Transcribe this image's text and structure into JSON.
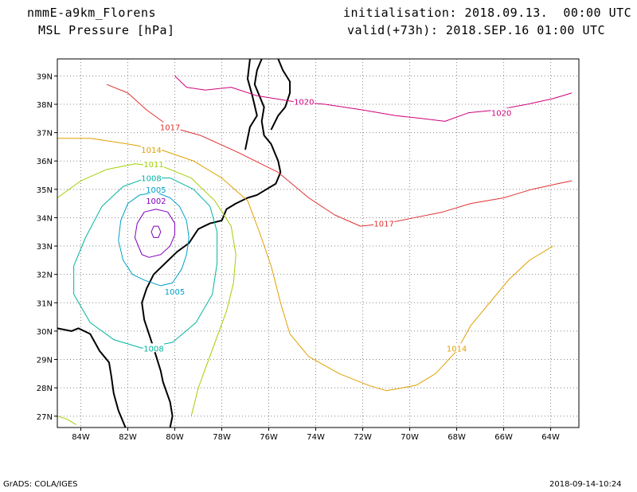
{
  "header": {
    "model": "nmmE-a9km_Florens",
    "variable": "MSL Pressure [hPa]",
    "initialisation": "initialisation: 2018.09.13.  00:00 UTC",
    "valid": "valid(+73h): 2018.SEP.16 01:00 UTC"
  },
  "footer": {
    "credit": "GrADS: COLA/IGES",
    "timestamp": "2018-09-14-10:24"
  },
  "map": {
    "lon_range": [
      -85,
      -62.8
    ],
    "lat_range": [
      26.6,
      39.6
    ],
    "grid": "dotted",
    "lon_ticks": [
      {
        "value": -84,
        "label": "84W"
      },
      {
        "value": -82,
        "label": "82W"
      },
      {
        "value": -80,
        "label": "80W"
      },
      {
        "value": -78,
        "label": "78W"
      },
      {
        "value": -76,
        "label": "76W"
      },
      {
        "value": -74,
        "label": "74W"
      },
      {
        "value": -72,
        "label": "72W"
      },
      {
        "value": -70,
        "label": "70W"
      },
      {
        "value": -68,
        "label": "68W"
      },
      {
        "value": -66,
        "label": "66W"
      },
      {
        "value": -64,
        "label": "64W"
      }
    ],
    "lat_ticks": [
      {
        "value": 27,
        "label": "27N"
      },
      {
        "value": 28,
        "label": "28N"
      },
      {
        "value": 29,
        "label": "29N"
      },
      {
        "value": 30,
        "label": "30N"
      },
      {
        "value": 31,
        "label": "31N"
      },
      {
        "value": 32,
        "label": "32N"
      },
      {
        "value": 33,
        "label": "33N"
      },
      {
        "value": 34,
        "label": "34N"
      },
      {
        "value": 35,
        "label": "35N"
      },
      {
        "value": 36,
        "label": "36N"
      },
      {
        "value": 37,
        "label": "37N"
      },
      {
        "value": 38,
        "label": "38N"
      },
      {
        "value": 39,
        "label": "39N"
      }
    ],
    "coastline": [
      [
        [
          -85,
          30.1
        ],
        [
          -84.4,
          30.0
        ],
        [
          -84.1,
          30.1
        ],
        [
          -83.6,
          29.9
        ],
        [
          -83.2,
          29.3
        ],
        [
          -82.8,
          28.9
        ],
        [
          -82.7,
          28.4
        ],
        [
          -82.6,
          27.8
        ],
        [
          -82.4,
          27.2
        ],
        [
          -82.2,
          26.8
        ],
        [
          -82.1,
          26.6
        ]
      ],
      [
        [
          -80.2,
          26.6
        ],
        [
          -80.1,
          27.0
        ],
        [
          -80.2,
          27.5
        ],
        [
          -80.5,
          28.2
        ],
        [
          -80.6,
          28.6
        ],
        [
          -80.9,
          29.4
        ],
        [
          -81.1,
          29.9
        ],
        [
          -81.3,
          30.4
        ],
        [
          -81.4,
          31.0
        ],
        [
          -81.2,
          31.5
        ],
        [
          -80.9,
          32.0
        ],
        [
          -80.4,
          32.4
        ],
        [
          -79.9,
          32.8
        ],
        [
          -79.4,
          33.1
        ],
        [
          -79.0,
          33.6
        ],
        [
          -78.5,
          33.8
        ],
        [
          -78.0,
          33.9
        ],
        [
          -77.8,
          34.3
        ],
        [
          -77.4,
          34.5
        ],
        [
          -76.9,
          34.7
        ],
        [
          -76.5,
          34.8
        ],
        [
          -76.1,
          35.0
        ],
        [
          -75.7,
          35.2
        ],
        [
          -75.5,
          35.6
        ],
        [
          -75.6,
          36.0
        ],
        [
          -75.9,
          36.6
        ],
        [
          -76.2,
          36.9
        ],
        [
          -76.3,
          37.4
        ],
        [
          -76.2,
          37.9
        ],
        [
          -76.4,
          38.3
        ],
        [
          -76.6,
          38.7
        ],
        [
          -76.5,
          39.2
        ],
        [
          -76.3,
          39.6
        ]
      ],
      [
        [
          -75.9,
          37.1
        ],
        [
          -75.6,
          37.6
        ],
        [
          -75.3,
          37.9
        ],
        [
          -75.1,
          38.4
        ],
        [
          -75.1,
          38.8
        ],
        [
          -75.4,
          39.2
        ],
        [
          -75.6,
          39.6
        ]
      ],
      [
        [
          -76.8,
          39.6
        ],
        [
          -76.9,
          38.9
        ],
        [
          -76.7,
          38.3
        ],
        [
          -76.5,
          37.6
        ],
        [
          -76.8,
          37.2
        ],
        [
          -77.0,
          36.4
        ]
      ]
    ],
    "contours": [
      {
        "level": 1002,
        "color": "#8000c0",
        "points": [
          [
            -81.4,
            32.7
          ],
          [
            -81.1,
            32.6
          ],
          [
            -80.6,
            32.7
          ],
          [
            -80.2,
            33.0
          ],
          [
            -80.0,
            33.4
          ],
          [
            -80.0,
            33.8
          ],
          [
            -80.3,
            34.2
          ],
          [
            -80.8,
            34.3
          ],
          [
            -81.3,
            34.2
          ],
          [
            -81.6,
            33.8
          ],
          [
            -81.7,
            33.3
          ],
          [
            -81.4,
            32.7
          ]
        ],
        "labels": [
          {
            "lon": -80.8,
            "lat": 34.6,
            "text": "1002"
          }
        ]
      },
      {
        "level": 998,
        "color": "#8000c0",
        "points": [
          [
            -81.0,
            33.5
          ],
          [
            -80.9,
            33.3
          ],
          [
            -80.7,
            33.3
          ],
          [
            -80.6,
            33.5
          ],
          [
            -80.7,
            33.7
          ],
          [
            -80.9,
            33.7
          ],
          [
            -81.0,
            33.5
          ]
        ],
        "labels": []
      },
      {
        "level": 1005,
        "color": "#00a0c8",
        "points": [
          [
            -81.3,
            31.8
          ],
          [
            -80.6,
            31.6
          ],
          [
            -80.1,
            31.7
          ],
          [
            -79.7,
            32.2
          ],
          [
            -79.5,
            32.7
          ],
          [
            -79.4,
            33.3
          ],
          [
            -79.5,
            33.9
          ],
          [
            -79.8,
            34.4
          ],
          [
            -80.2,
            34.7
          ],
          [
            -80.8,
            34.9
          ],
          [
            -81.5,
            34.8
          ],
          [
            -82.0,
            34.5
          ],
          [
            -82.3,
            33.9
          ],
          [
            -82.4,
            33.2
          ],
          [
            -82.2,
            32.5
          ],
          [
            -81.8,
            32.0
          ],
          [
            -81.3,
            31.8
          ]
        ],
        "labels": [
          {
            "lon": -80.8,
            "lat": 35.0,
            "text": "1005"
          },
          {
            "lon": -80.0,
            "lat": 31.4,
            "text": "1005"
          }
        ]
      },
      {
        "level": 1008,
        "color": "#00b4a0",
        "points": [
          [
            -81.4,
            29.4
          ],
          [
            -80.1,
            29.6
          ],
          [
            -79.1,
            30.3
          ],
          [
            -78.4,
            31.3
          ],
          [
            -78.2,
            32.4
          ],
          [
            -78.2,
            33.5
          ],
          [
            -78.5,
            34.4
          ],
          [
            -79.2,
            35.0
          ],
          [
            -80.2,
            35.4
          ],
          [
            -81.2,
            35.4
          ],
          [
            -82.2,
            35.1
          ],
          [
            -83.1,
            34.4
          ],
          [
            -83.8,
            33.3
          ],
          [
            -84.3,
            32.3
          ],
          [
            -84.3,
            31.3
          ],
          [
            -83.6,
            30.3
          ],
          [
            -82.6,
            29.7
          ],
          [
            -81.4,
            29.4
          ]
        ],
        "labels": [
          {
            "lon": -81.0,
            "lat": 35.4,
            "text": "1008"
          },
          {
            "lon": -80.9,
            "lat": 29.4,
            "text": "1008"
          }
        ]
      },
      {
        "level": 1011,
        "color": "#a0d000",
        "points": [
          [
            -85.0,
            34.7
          ],
          [
            -84.0,
            35.3
          ],
          [
            -82.9,
            35.7
          ],
          [
            -81.7,
            35.9
          ],
          [
            -80.5,
            35.8
          ],
          [
            -79.3,
            35.4
          ],
          [
            -78.3,
            34.6
          ],
          [
            -77.6,
            33.7
          ],
          [
            -77.4,
            32.7
          ],
          [
            -77.5,
            31.7
          ],
          [
            -77.8,
            30.7
          ],
          [
            -78.2,
            29.8
          ],
          [
            -78.6,
            28.9
          ],
          [
            -79.0,
            28.0
          ],
          [
            -79.3,
            27.0
          ]
        ],
        "labels": [
          {
            "lon": -80.9,
            "lat": 35.9,
            "text": "1011"
          }
        ]
      },
      {
        "level": 1011,
        "color": "#a0d000",
        "points": [
          [
            -85.0,
            27.0
          ],
          [
            -84.6,
            26.9
          ],
          [
            -84.2,
            26.7
          ]
        ],
        "labels": []
      },
      {
        "level": 1014,
        "color": "#e0a000",
        "points": [
          [
            -85.0,
            36.8
          ],
          [
            -83.6,
            36.8
          ],
          [
            -82.0,
            36.6
          ],
          [
            -80.6,
            36.4
          ],
          [
            -79.2,
            36.0
          ],
          [
            -78.0,
            35.4
          ],
          [
            -76.9,
            34.6
          ],
          [
            -76.4,
            33.5
          ],
          [
            -75.9,
            32.3
          ],
          [
            -75.5,
            31.0
          ],
          [
            -75.1,
            29.9
          ],
          [
            -74.3,
            29.1
          ],
          [
            -73.0,
            28.5
          ],
          [
            -71.8,
            28.1
          ],
          [
            -71.0,
            27.9
          ],
          [
            -70.3,
            28.0
          ],
          [
            -69.7,
            28.1
          ],
          [
            -68.9,
            28.5
          ],
          [
            -68.0,
            29.3
          ],
          [
            -67.4,
            30.2
          ],
          [
            -66.6,
            31.0
          ],
          [
            -65.8,
            31.8
          ],
          [
            -64.9,
            32.5
          ],
          [
            -63.9,
            33.0
          ]
        ],
        "labels": [
          {
            "lon": -81.0,
            "lat": 36.4,
            "text": "1014"
          },
          {
            "lon": -68.0,
            "lat": 29.4,
            "text": "1014"
          }
        ]
      },
      {
        "level": 1017,
        "color": "#e03030",
        "points": [
          [
            -82.9,
            38.7
          ],
          [
            -82.0,
            38.4
          ],
          [
            -81.2,
            37.8
          ],
          [
            -80.2,
            37.2
          ],
          [
            -78.9,
            36.9
          ],
          [
            -77.3,
            36.3
          ],
          [
            -75.6,
            35.6
          ],
          [
            -74.3,
            34.7
          ],
          [
            -73.2,
            34.1
          ],
          [
            -72.1,
            33.7
          ],
          [
            -71.0,
            33.8
          ],
          [
            -69.8,
            34.0
          ],
          [
            -68.6,
            34.2
          ],
          [
            -67.4,
            34.5
          ],
          [
            -66.0,
            34.7
          ],
          [
            -64.8,
            35.0
          ],
          [
            -63.7,
            35.2
          ],
          [
            -63.1,
            35.3
          ]
        ],
        "labels": [
          {
            "lon": -80.2,
            "lat": 37.2,
            "text": "1017"
          },
          {
            "lon": -71.1,
            "lat": 33.8,
            "text": "1017"
          }
        ]
      },
      {
        "level": 1020,
        "color": "#d0007a",
        "points": [
          [
            -80.0,
            39.0
          ],
          [
            -79.5,
            38.6
          ],
          [
            -78.7,
            38.5
          ],
          [
            -77.6,
            38.6
          ],
          [
            -76.5,
            38.3
          ],
          [
            -75.0,
            38.1
          ],
          [
            -73.6,
            38.0
          ],
          [
            -72.0,
            37.8
          ],
          [
            -70.6,
            37.6
          ],
          [
            -69.5,
            37.5
          ],
          [
            -68.5,
            37.4
          ],
          [
            -67.5,
            37.7
          ],
          [
            -66.3,
            37.8
          ],
          [
            -65.0,
            38.0
          ],
          [
            -63.9,
            38.2
          ],
          [
            -63.1,
            38.4
          ]
        ],
        "labels": [
          {
            "lon": -74.5,
            "lat": 38.1,
            "text": "1020"
          },
          {
            "lon": -66.1,
            "lat": 37.7,
            "text": "1020"
          }
        ]
      }
    ]
  }
}
